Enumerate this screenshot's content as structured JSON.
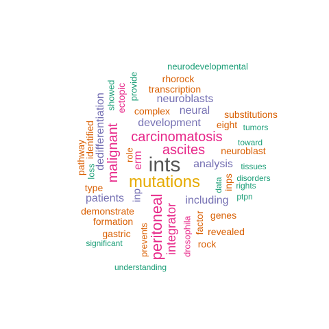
{
  "colors": {
    "green": "#1b9e77",
    "orange": "#d95f02",
    "purple": "#7570b3",
    "magenta": "#e7298a",
    "gold": "#e6ab02",
    "gray": "#555555"
  },
  "words": [
    {
      "id": "ints",
      "text": "ints",
      "color": "gray"
    },
    {
      "id": "mutations",
      "text": "mutations",
      "color": "gold"
    },
    {
      "id": "carcinomatosis",
      "text": "carcinomatosis",
      "color": "magenta"
    },
    {
      "id": "ascites",
      "text": "ascites",
      "color": "magenta"
    },
    {
      "id": "peritoneal",
      "text": "peritoneal",
      "color": "magenta"
    },
    {
      "id": "malignant",
      "text": "malignant",
      "color": "magenta"
    },
    {
      "id": "integrator",
      "text": "integrator",
      "color": "magenta"
    },
    {
      "id": "erm",
      "text": "erm",
      "color": "magenta"
    },
    {
      "id": "development",
      "text": "development",
      "color": "purple"
    },
    {
      "id": "neuroblasts",
      "text": "neuroblasts",
      "color": "purple"
    },
    {
      "id": "analysis",
      "text": "analysis",
      "color": "purple"
    },
    {
      "id": "including",
      "text": "including",
      "color": "purple"
    },
    {
      "id": "patients",
      "text": "patients",
      "color": "purple"
    },
    {
      "id": "neural",
      "text": "neural",
      "color": "purple"
    },
    {
      "id": "dedifferentiation",
      "text": "dedifferentiation",
      "color": "purple"
    },
    {
      "id": "inp",
      "text": "inp",
      "color": "purple"
    },
    {
      "id": "neurodevelopmental",
      "text": "neurodevelopmental",
      "color": "green"
    },
    {
      "id": "rhorock",
      "text": "rhorock",
      "color": "orange"
    },
    {
      "id": "transcription",
      "text": "transcription",
      "color": "orange"
    },
    {
      "id": "complex",
      "text": "complex",
      "color": "orange"
    },
    {
      "id": "eight",
      "text": "eight",
      "color": "orange"
    },
    {
      "id": "substitutions",
      "text": "substitutions",
      "color": "orange"
    },
    {
      "id": "tumors",
      "text": "tumors",
      "color": "green"
    },
    {
      "id": "toward",
      "text": "toward",
      "color": "green"
    },
    {
      "id": "neuroblast",
      "text": "neuroblast",
      "color": "orange"
    },
    {
      "id": "tissues",
      "text": "tissues",
      "color": "green"
    },
    {
      "id": "disorders",
      "text": "disorders",
      "color": "green"
    },
    {
      "id": "rights",
      "text": "rights",
      "color": "green"
    },
    {
      "id": "ptpn",
      "text": "ptpn",
      "color": "green"
    },
    {
      "id": "data",
      "text": "data",
      "color": "green"
    },
    {
      "id": "inps",
      "text": "inps",
      "color": "orange"
    },
    {
      "id": "genes",
      "text": "genes",
      "color": "orange"
    },
    {
      "id": "revealed",
      "text": "revealed",
      "color": "orange"
    },
    {
      "id": "rock",
      "text": "rock",
      "color": "orange"
    },
    {
      "id": "factor",
      "text": "factor",
      "color": "orange"
    },
    {
      "id": "drosophila",
      "text": "drosophila",
      "color": "magenta"
    },
    {
      "id": "prevents",
      "text": "prevents",
      "color": "orange"
    },
    {
      "id": "gastric",
      "text": "gastric",
      "color": "orange"
    },
    {
      "id": "formation",
      "text": "formation",
      "color": "orange"
    },
    {
      "id": "demonstrate",
      "text": "demonstrate",
      "color": "orange"
    },
    {
      "id": "significant",
      "text": "significant",
      "color": "green"
    },
    {
      "id": "understanding",
      "text": "understanding",
      "color": "green"
    },
    {
      "id": "type",
      "text": "type",
      "color": "orange"
    },
    {
      "id": "role",
      "text": "role",
      "color": "orange"
    },
    {
      "id": "pathway",
      "text": "pathway",
      "color": "orange"
    },
    {
      "id": "loss",
      "text": "loss",
      "color": "green"
    },
    {
      "id": "identified",
      "text": "identified",
      "color": "orange"
    },
    {
      "id": "showed",
      "text": "showed",
      "color": "green"
    },
    {
      "id": "ectopic",
      "text": "ectopic",
      "color": "magenta"
    },
    {
      "id": "provide",
      "text": "provide",
      "color": "green"
    }
  ]
}
